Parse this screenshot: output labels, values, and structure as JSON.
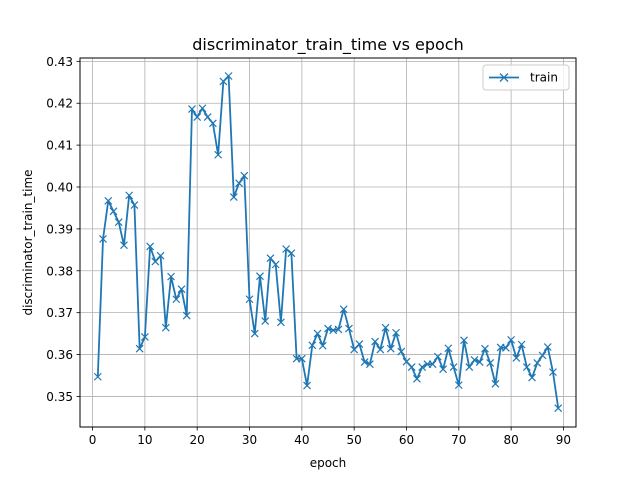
{
  "chart_data": {
    "type": "line",
    "title": "discriminator_train_time vs epoch",
    "xlabel": "epoch",
    "ylabel": "discriminator_train_time",
    "xlim": [
      -2.4,
      92.4
    ],
    "ylim": [
      0.3427,
      0.4308
    ],
    "xticks": [
      0,
      10,
      20,
      30,
      40,
      50,
      60,
      70,
      80,
      90
    ],
    "yticks": [
      0.35,
      0.36,
      0.37,
      0.38,
      0.39,
      0.4,
      0.41,
      0.42,
      0.43
    ],
    "ytick_labels": [
      "0.35",
      "0.36",
      "0.37",
      "0.38",
      "0.39",
      "0.40",
      "0.41",
      "0.42",
      "0.43"
    ],
    "grid": true,
    "legend": "upper right",
    "series_color": "#1f77b4",
    "marker": "x",
    "series": [
      {
        "name": "train",
        "x": [
          1,
          2,
          3,
          4,
          5,
          6,
          7,
          8,
          9,
          10,
          11,
          12,
          13,
          14,
          15,
          16,
          17,
          18,
          19,
          20,
          21,
          22,
          23,
          24,
          25,
          26,
          27,
          28,
          29,
          30,
          31,
          32,
          33,
          34,
          35,
          36,
          37,
          38,
          39,
          40,
          41,
          42,
          43,
          44,
          45,
          46,
          47,
          48,
          49,
          50,
          51,
          52,
          53,
          54,
          55,
          56,
          57,
          58,
          59,
          60,
          61,
          62,
          63,
          64,
          65,
          66,
          67,
          68,
          69,
          70,
          71,
          72,
          73,
          74,
          75,
          76,
          77,
          78,
          79,
          80,
          81,
          82,
          83,
          84,
          85,
          86,
          87,
          88,
          89
        ],
        "y": [
          0.3547,
          0.3876,
          0.3967,
          0.3942,
          0.3916,
          0.3861,
          0.398,
          0.3957,
          0.3614,
          0.3642,
          0.3858,
          0.3822,
          0.3836,
          0.3664,
          0.3786,
          0.3732,
          0.3756,
          0.3693,
          0.4186,
          0.4167,
          0.4188,
          0.4167,
          0.4152,
          0.4077,
          0.4252,
          0.4265,
          0.3976,
          0.4009,
          0.4027,
          0.3732,
          0.365,
          0.3787,
          0.368,
          0.383,
          0.3815,
          0.3677,
          0.3852,
          0.3842,
          0.359,
          0.359,
          0.3526,
          0.3622,
          0.365,
          0.3621,
          0.3662,
          0.3658,
          0.366,
          0.3708,
          0.3662,
          0.3612,
          0.3625,
          0.3582,
          0.3577,
          0.3631,
          0.3612,
          0.3664,
          0.3614,
          0.3652,
          0.3607,
          0.3583,
          0.357,
          0.3542,
          0.357,
          0.3577,
          0.3577,
          0.3595,
          0.3565,
          0.3615,
          0.357,
          0.3527,
          0.3634,
          0.357,
          0.3587,
          0.3582,
          0.3614,
          0.358,
          0.353,
          0.3617,
          0.3616,
          0.3635,
          0.3592,
          0.3624,
          0.357,
          0.3545,
          0.358,
          0.3598,
          0.3618,
          0.3558,
          0.3472
        ]
      }
    ]
  }
}
